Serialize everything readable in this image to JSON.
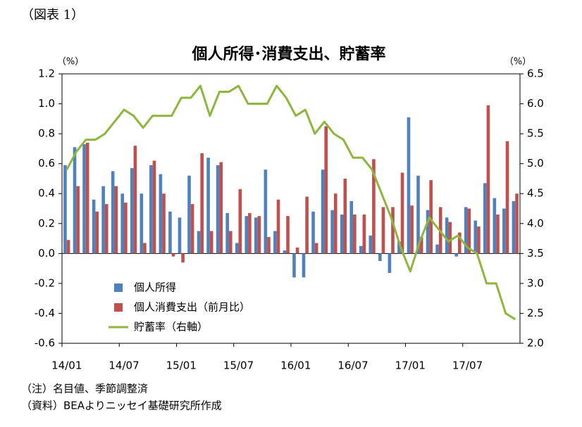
{
  "figure_label": "（図表 1）",
  "chart_data": {
    "type": "bar_line",
    "title": "個人所得･消費支出、貯蓄率",
    "y_unit": "（%）",
    "y2_unit": "（%）",
    "categories": [
      "14/01",
      null,
      null,
      null,
      null,
      null,
      "14/07",
      null,
      null,
      null,
      null,
      null,
      "15/01",
      null,
      null,
      null,
      null,
      null,
      "15/07",
      null,
      null,
      null,
      null,
      null,
      "16/01",
      null,
      null,
      null,
      null,
      null,
      "16/07",
      null,
      null,
      null,
      null,
      null,
      "17/01",
      null,
      null,
      null,
      null,
      null,
      "17/07",
      null,
      null,
      null,
      null,
      null
    ],
    "series": [
      {
        "name": "個人所得",
        "type": "bar",
        "color": "#4f81bd",
        "values": [
          0.59,
          0.71,
          0.73,
          0.36,
          0.45,
          0.55,
          0.4,
          0.57,
          0.4,
          0.59,
          0.53,
          0.28,
          0.24,
          0.52,
          0.15,
          0.64,
          0.59,
          0.27,
          0.07,
          0.25,
          0.24,
          0.56,
          0.15,
          0.02,
          -0.16,
          -0.16,
          0.28,
          0.56,
          0.29,
          0.26,
          0.35,
          0.05,
          0.12,
          -0.05,
          -0.13,
          0.08,
          0.91,
          0.52,
          0.29,
          0.06,
          0.24,
          -0.02,
          0.31,
          0.22,
          0.47,
          0.37,
          0.3,
          0.35
        ]
      },
      {
        "name": "個人消費支出（前月比）",
        "type": "bar",
        "color": "#c0504d",
        "values": [
          0.09,
          0.45,
          0.74,
          0.28,
          0.33,
          0.45,
          0.34,
          0.72,
          0.07,
          0.62,
          0.4,
          -0.02,
          -0.06,
          0.33,
          0.67,
          0.15,
          0.61,
          0.15,
          0.43,
          0.27,
          0.25,
          0.11,
          0.36,
          0.25,
          0.04,
          0.38,
          0.07,
          0.85,
          0.4,
          0.5,
          0.26,
          0.26,
          0.63,
          0.31,
          0.31,
          0.54,
          0.32,
          0.11,
          0.49,
          0.31,
          0.21,
          0.14,
          0.3,
          0.18,
          0.99,
          0.26,
          0.75,
          0.4
        ]
      },
      {
        "name": "貯蓄率（右軸）",
        "type": "line",
        "axis": "y2",
        "color": "#8db63c",
        "values": [
          4.9,
          5.2,
          5.4,
          5.4,
          5.5,
          5.7,
          5.9,
          5.8,
          5.6,
          5.8,
          5.8,
          5.8,
          6.1,
          6.1,
          6.3,
          5.8,
          6.2,
          6.2,
          6.3,
          6.0,
          6.0,
          6.0,
          6.3,
          6.1,
          5.8,
          5.9,
          5.5,
          5.7,
          5.5,
          5.4,
          5.1,
          5.1,
          4.9,
          4.5,
          4.1,
          3.6,
          3.2,
          3.7,
          4.1,
          3.9,
          3.7,
          3.8,
          3.6,
          3.5,
          3.0,
          3.0,
          2.5,
          2.4
        ]
      }
    ],
    "ylim": [
      -0.6,
      1.2
    ],
    "yticks": [
      -0.6,
      -0.4,
      -0.2,
      {
        "value": 0,
        "label": "0.0"
      },
      0.2,
      0.4,
      0.6,
      0.8,
      {
        "value": 1,
        "label": "1.0"
      },
      1.2
    ],
    "y2lim": [
      2,
      6.5
    ],
    "y2ticks": [
      {
        "value": 2,
        "label": "2.0"
      },
      2.5,
      {
        "value": 3,
        "label": "3.0"
      },
      3.5,
      {
        "value": 4,
        "label": "4.0"
      },
      4.5,
      {
        "value": 5,
        "label": "5.0"
      },
      5.5,
      {
        "value": 6,
        "label": "6.0"
      },
      6.5
    ],
    "grid": false,
    "legend": "lower left"
  },
  "notes": [
    "（注）名目値、季節調整済",
    "（資料）BEAよりニッセイ基礎研究所作成"
  ]
}
